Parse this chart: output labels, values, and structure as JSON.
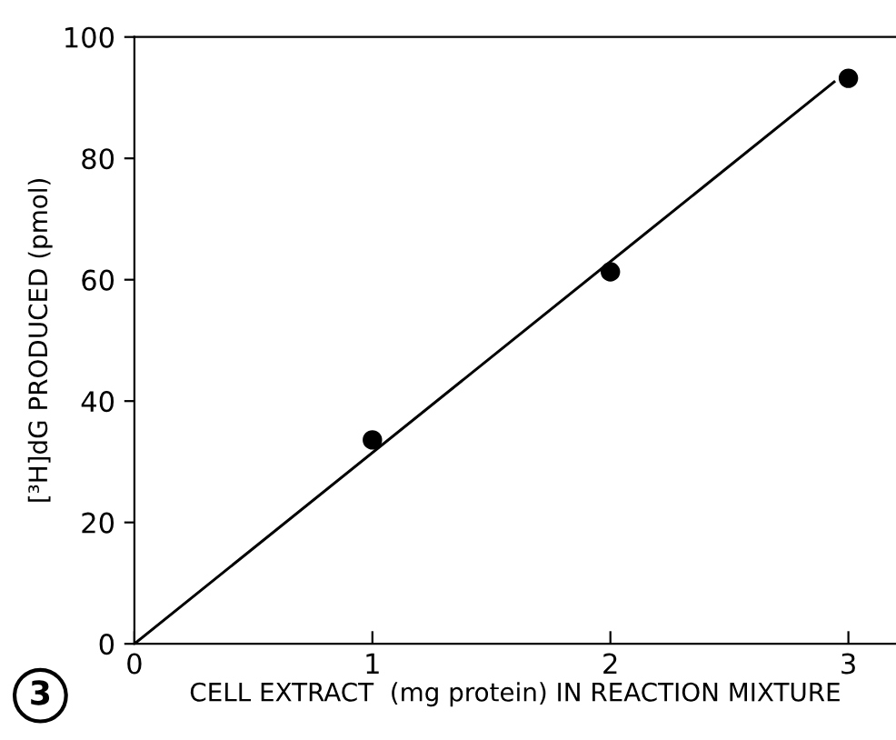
{
  "chart_data": {
    "type": "scatter",
    "xlabel": "CELL EXTRACT  (mg protein) IN REACTION MIXTURE",
    "ylabel": "[³H]dG PRODUCED (pmol)",
    "annotations": [
      "3"
    ],
    "series": [
      {
        "color": "#000000",
        "x": [
          1,
          2,
          3
        ],
        "values": [
          33.6,
          61.3,
          93.2
        ],
        "marker": "circle"
      },
      {
        "type": "line",
        "color": "#000000",
        "x": [
          0,
          2.94
        ],
        "values": [
          0,
          92.6
        ],
        "line_style": "solid"
      }
    ],
    "xlim": [
      0,
      3.2
    ],
    "ylim": [
      0,
      100
    ],
    "xticks": [
      0,
      1,
      2,
      3
    ],
    "yticks": [
      0,
      20,
      40,
      60,
      80,
      100
    ],
    "grid": false
  }
}
